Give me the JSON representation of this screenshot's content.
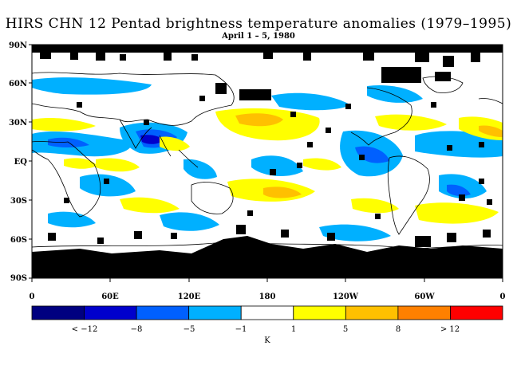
{
  "header": {
    "title": "HIRS CHN 12 Pentad brightness temperature anomalies (1979–1995)",
    "subtitle": "April 1 – 5, 1980"
  },
  "map": {
    "lat_labels": [
      "90N",
      "60N",
      "30N",
      "EQ",
      "30S",
      "60S",
      "90S"
    ],
    "lon_labels": [
      "0",
      "60E",
      "120E",
      "180",
      "120W",
      "60W",
      "0"
    ],
    "extent": {
      "lon": [
        0,
        360
      ],
      "lat": [
        -90,
        90
      ]
    }
  },
  "colorbar": {
    "colors": [
      "#000080",
      "#0000cc",
      "#0060ff",
      "#00b0ff",
      "#ffffff",
      "#ffff00",
      "#ffc000",
      "#ff8000",
      "#ff0000"
    ],
    "labels": [
      "< −12",
      "−8",
      "−5",
      "−1",
      "1",
      "5",
      "8",
      "> 12"
    ],
    "unit": "K"
  },
  "colors": {
    "no_data": "#000000",
    "outline": "#000000"
  }
}
